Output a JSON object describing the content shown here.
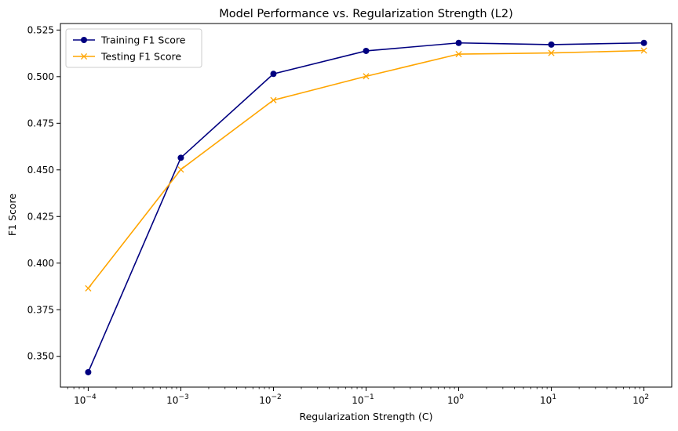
{
  "chart_data": {
    "type": "line",
    "title": "Model Performance vs. Regularization Strength (L2)",
    "xlabel": "Regularization Strength (C)",
    "ylabel": "F1 Score",
    "x_scale": "log",
    "x": [
      0.0001,
      0.001,
      0.01,
      0.1,
      1,
      10,
      100
    ],
    "x_tick_labels": [
      {
        "base": "10",
        "exp": "−4"
      },
      {
        "base": "10",
        "exp": "−3"
      },
      {
        "base": "10",
        "exp": "−2"
      },
      {
        "base": "10",
        "exp": "−1"
      },
      {
        "base": "10",
        "exp": "0"
      },
      {
        "base": "10",
        "exp": "1"
      },
      {
        "base": "10",
        "exp": "2"
      }
    ],
    "y_ticks": [
      0.35,
      0.375,
      0.4,
      0.425,
      0.45,
      0.475,
      0.5,
      0.525
    ],
    "y_tick_labels": [
      "0.350",
      "0.375",
      "0.400",
      "0.425",
      "0.450",
      "0.475",
      "0.500",
      "0.525"
    ],
    "ylim": [
      0.3335,
      0.5285
    ],
    "xlim_exp": [
      -4.3,
      2.3
    ],
    "grid": false,
    "legend_position": "top-left",
    "series": [
      {
        "name": "Training F1 Score",
        "color": "#000080",
        "marker": "circle",
        "values": [
          0.3415,
          0.4565,
          0.5015,
          0.5138,
          0.5181,
          0.5172,
          0.5181
        ]
      },
      {
        "name": "Testing F1 Score",
        "color": "#ffa500",
        "marker": "x",
        "values": [
          0.3865,
          0.4502,
          0.4874,
          0.5002,
          0.5121,
          0.5127,
          0.514
        ]
      }
    ]
  }
}
